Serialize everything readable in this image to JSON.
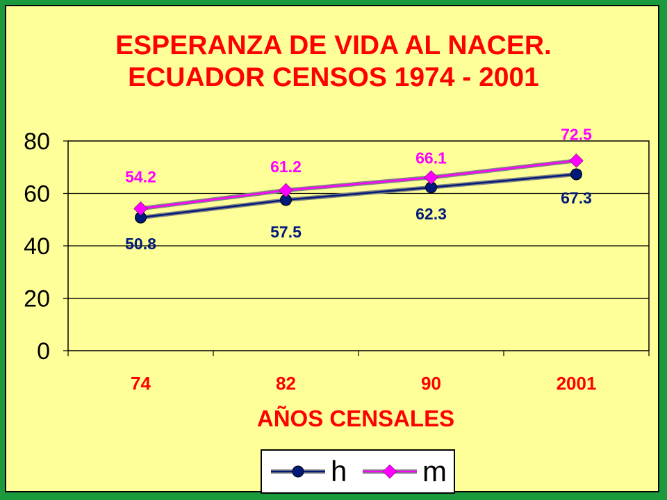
{
  "colors": {
    "frame": "#1a9a3c",
    "background": "#ffff99",
    "title": "#ff0000",
    "axis_title": "#ff0000",
    "h_series": "#001a7a",
    "m_series": "#ff00ff"
  },
  "chart_data": {
    "type": "line",
    "title_line1": "ESPERANZA DE VIDA AL NACER.",
    "title_line2": "ECUADOR CENSOS 1974 - 2001",
    "xlabel": "AÑOS CENSALES",
    "ylabel": "",
    "categories": [
      "74",
      "82",
      "90",
      "2001"
    ],
    "ylim": [
      0,
      80
    ],
    "yticks": [
      0,
      20,
      40,
      60,
      80
    ],
    "grid": true,
    "legend_position": "bottom",
    "series": [
      {
        "name": "h",
        "values": [
          50.8,
          57.5,
          62.3,
          67.3
        ],
        "labels": [
          "50.8",
          "57.5",
          "62.3",
          "67.3"
        ],
        "color": "#001a7a",
        "marker": "circle"
      },
      {
        "name": "m",
        "values": [
          54.2,
          61.2,
          66.1,
          72.5
        ],
        "labels": [
          "54.2",
          "61.2",
          "66.1",
          "72.5"
        ],
        "color": "#ff00ff",
        "marker": "diamond"
      }
    ]
  }
}
